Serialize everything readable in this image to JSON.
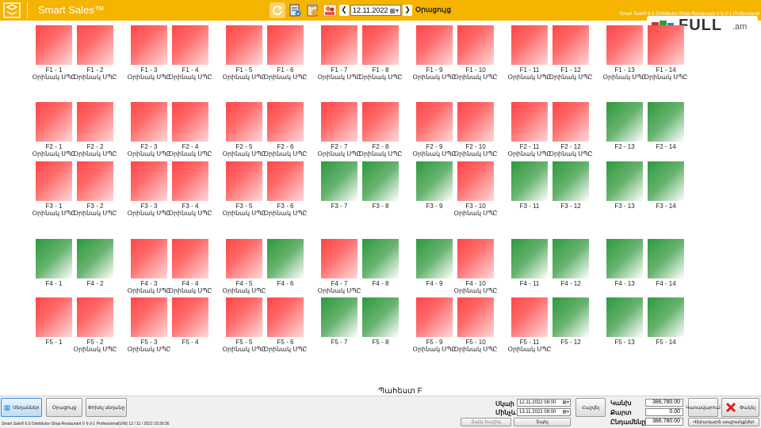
{
  "app": {
    "title": "Smart Sales™",
    "version_top": "Smart Sale® 6.5 Distributor-Shop-Restaurant V 6-3-1 Professional",
    "date": "12.11.2022",
    "topbar_label": "Օրացույց",
    "watermark": "FULL",
    "watermark_suffix": ".am"
  },
  "toolbar_icons": [
    "refresh-icon",
    "checklist-icon",
    "clipboard-icon",
    "users-icon"
  ],
  "status_colors": {
    "occupied": "#ff4646",
    "free": "#2e9a3c"
  },
  "tiles": [
    {
      "label": "F1 - 1",
      "sub": "Օրինակ ՍՊԸ",
      "status": "red"
    },
    {
      "label": "F1 - 2",
      "sub": "Օրինակ ՍՊԸ",
      "status": "red"
    },
    {
      "label": "F1 - 3",
      "sub": "Օրինակ ՍՊԸ",
      "status": "red"
    },
    {
      "label": "F1 - 4",
      "sub": "Օրինակ ՍՊԸ",
      "status": "red"
    },
    {
      "label": "F1 - 5",
      "sub": "Օրինակ ՍՊԸ",
      "status": "red"
    },
    {
      "label": "F1 - 6",
      "sub": "Օրինակ ՍՊԸ",
      "status": "red"
    },
    {
      "label": "F1 - 7",
      "sub": "Օրինակ ՍՊԸ",
      "status": "red"
    },
    {
      "label": "F1 - 8",
      "sub": "Օրինակ ՍՊԸ",
      "status": "red"
    },
    {
      "label": "F1 - 9",
      "sub": "Օրինակ ՍՊԸ",
      "status": "red"
    },
    {
      "label": "F1 - 10",
      "sub": "Օրինակ ՍՊԸ",
      "status": "red"
    },
    {
      "label": "F1 - 11",
      "sub": "Օրինակ ՍՊԸ",
      "status": "red"
    },
    {
      "label": "F1 - 12",
      "sub": "Օրինակ ՍՊԸ",
      "status": "red"
    },
    {
      "label": "F1 - 13",
      "sub": "Օրինակ ՍՊԸ",
      "status": "red"
    },
    {
      "label": "F1 - 14",
      "sub": "Օրինակ ՍՊԸ",
      "status": "red"
    },
    {
      "label": "F2 - 1",
      "sub": "Օրինակ ՍՊԸ",
      "status": "red"
    },
    {
      "label": "F2 - 2",
      "sub": "Օրինակ ՍՊԸ",
      "status": "red"
    },
    {
      "label": "F2 - 3",
      "sub": "Օրինակ ՍՊԸ",
      "status": "red"
    },
    {
      "label": "F2 - 4",
      "sub": "Օրինակ ՍՊԸ",
      "status": "red"
    },
    {
      "label": "F2 - 5",
      "sub": "Օրինակ ՍՊԸ",
      "status": "red"
    },
    {
      "label": "F2 - 6",
      "sub": "Օրինակ ՍՊԸ",
      "status": "red"
    },
    {
      "label": "F2 - 7",
      "sub": "Օրինակ ՍՊԸ",
      "status": "red"
    },
    {
      "label": "F2 - 8",
      "sub": "Օրինակ ՍՊԸ",
      "status": "red"
    },
    {
      "label": "F2 - 9",
      "sub": "Օրինակ ՍՊԸ",
      "status": "red"
    },
    {
      "label": "F2 - 10",
      "sub": "Օրինակ ՍՊԸ",
      "status": "red"
    },
    {
      "label": "F2 - 11",
      "sub": "Օրինակ ՍՊԸ",
      "status": "red"
    },
    {
      "label": "F2 - 12",
      "sub": "Օրինակ ՍՊԸ",
      "status": "red"
    },
    {
      "label": "F2 - 13",
      "sub": "",
      "status": "green"
    },
    {
      "label": "F2 - 14",
      "sub": "",
      "status": "green"
    },
    {
      "label": "F3 - 1",
      "sub": "Օրինակ ՍՊԸ",
      "status": "red"
    },
    {
      "label": "F3 - 2",
      "sub": "Օրինակ ՍՊԸ",
      "status": "red"
    },
    {
      "label": "F3 - 3",
      "sub": "Օրինակ ՍՊԸ",
      "status": "red"
    },
    {
      "label": "F3 - 4",
      "sub": "Օրինակ ՍՊԸ",
      "status": "red"
    },
    {
      "label": "F3 - 5",
      "sub": "Օրինակ ՍՊԸ",
      "status": "red"
    },
    {
      "label": "F3 - 6",
      "sub": "Օրինակ ՍՊԸ",
      "status": "red"
    },
    {
      "label": "F3 - 7",
      "sub": "",
      "status": "green"
    },
    {
      "label": "F3 - 8",
      "sub": "",
      "status": "green"
    },
    {
      "label": "F3 - 9",
      "sub": "",
      "status": "green"
    },
    {
      "label": "F3 - 10",
      "sub": "Օրինակ ՍՊԸ",
      "status": "red"
    },
    {
      "label": "F3 - 11",
      "sub": "",
      "status": "green"
    },
    {
      "label": "F3 - 12",
      "sub": "",
      "status": "green"
    },
    {
      "label": "F3 - 13",
      "sub": "",
      "status": "green"
    },
    {
      "label": "F3 - 14",
      "sub": "",
      "status": "green"
    },
    {
      "label": "F4 - 1",
      "sub": "",
      "status": "green"
    },
    {
      "label": "F4 - 2",
      "sub": "",
      "status": "green"
    },
    {
      "label": "F4 - 3",
      "sub": "Օրինակ ՍՊԸ",
      "status": "red"
    },
    {
      "label": "F4 - 4",
      "sub": "Օրինակ ՍՊԸ",
      "status": "red"
    },
    {
      "label": "F4 - 5",
      "sub": "Օրինակ ՍՊԸ",
      "status": "red"
    },
    {
      "label": "F4 - 6",
      "sub": "",
      "status": "green"
    },
    {
      "label": "F4 - 7",
      "sub": "Օրինակ ՍՊԸ",
      "status": "red"
    },
    {
      "label": "F4 - 8",
      "sub": "",
      "status": "green"
    },
    {
      "label": "F4 - 9",
      "sub": "",
      "status": "green"
    },
    {
      "label": "F4 - 10",
      "sub": "Օրինակ ՍՊԸ",
      "status": "red"
    },
    {
      "label": "F4 - 11",
      "sub": "",
      "status": "green"
    },
    {
      "label": "F4 - 12",
      "sub": "",
      "status": "green"
    },
    {
      "label": "F4 - 13",
      "sub": "",
      "status": "green"
    },
    {
      "label": "F4 - 14",
      "sub": "",
      "status": "green"
    },
    {
      "label": "F5 - 1",
      "sub": "",
      "status": "red"
    },
    {
      "label": "F5 - 2",
      "sub": "Օրինակ ՍՊԸ",
      "status": "red"
    },
    {
      "label": "F5 - 3",
      "sub": "Օրինակ ՍՊԸ",
      "status": "red"
    },
    {
      "label": "F5 - 4",
      "sub": "",
      "status": "red"
    },
    {
      "label": "F5 - 5",
      "sub": "Օրինակ ՍՊԸ",
      "status": "red"
    },
    {
      "label": "F5 - 6",
      "sub": "Օրինակ ՍՊԸ",
      "status": "red"
    },
    {
      "label": "F5 - 7",
      "sub": "",
      "status": "green"
    },
    {
      "label": "F5 - 8",
      "sub": "",
      "status": "green"
    },
    {
      "label": "F5 - 9",
      "sub": "Օրինակ ՍՊԸ",
      "status": "red"
    },
    {
      "label": "F5 - 10",
      "sub": "Օրինակ ՍՊԸ",
      "status": "red"
    },
    {
      "label": "F5 - 11",
      "sub": "Օրինակ ՍՊԸ",
      "status": "red"
    },
    {
      "label": "F5 - 12",
      "sub": "",
      "status": "green"
    },
    {
      "label": "F5 - 13",
      "sub": "",
      "status": "green"
    },
    {
      "label": "F5 - 14",
      "sub": "",
      "status": "green"
    }
  ],
  "hall_label": "Պահեստ F",
  "bottom": {
    "btn_tables": "Սեղաններ",
    "btn_daily": "Օրացույց",
    "btn_change": "Փոխել սեղանը",
    "label_from": "Սկաի",
    "label_to": "Մինչև",
    "from_value": "12.11.2022 08:00",
    "to_value": "13.11.2022 08:00",
    "btn_calc": "Հաշվել",
    "btn_print_disabled": "Տպել հաշիվ",
    "btn_print": "Տպել",
    "label_cash": "Կանխ",
    "label_card": "Քարտ",
    "label_total": "Ընդամենը",
    "cash_value": "386,780.00",
    "card_value": "0.00",
    "total_value": "386,780.00",
    "btn_manage": "Կառավարում",
    "btn_close": "Փակել",
    "btn_return": "Վերադարձ ապրանքներ",
    "footer": "Smart Sale® 6.5 Distributor-Shop-Restaurant V 6-3-1 Professional(UNI)  12 / 11 / 2022 10:30:36"
  }
}
